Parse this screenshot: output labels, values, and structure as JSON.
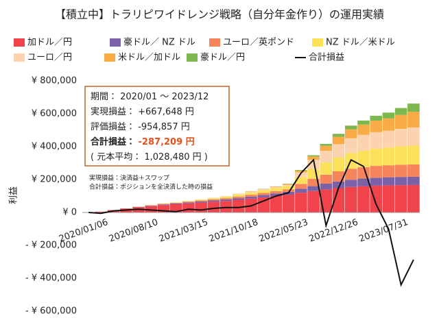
{
  "chart_data": {
    "type": "stacked-bar-line",
    "title": "【積立中】トラリピワイドレンジ戦略（自分年金作り）の運用実績",
    "y_label": "利益",
    "categories": [
      "2020/01/06",
      null,
      null,
      null,
      "2020/08/10",
      null,
      null,
      null,
      "2021/03/15",
      null,
      null,
      null,
      "2021/10/18",
      null,
      null,
      null,
      "2022/05/23",
      null,
      null,
      null,
      "2022/12/26",
      null,
      null,
      null,
      "2023/07/31",
      null,
      null
    ],
    "series": [
      {
        "name": "加ドル／円",
        "color": "#f0434b",
        "values": [
          0,
          5000,
          14000,
          23000,
          31000,
          38000,
          45000,
          50000,
          55000,
          60000,
          65000,
          70000,
          77000,
          84000,
          92000,
          100000,
          108000,
          120000,
          130000,
          140000,
          148000,
          155000,
          160000,
          163000,
          165000,
          166000,
          167000
        ]
      },
      {
        "name": "豪ドル／ NZ ドル",
        "color": "#7b62a8",
        "values": [
          0,
          0,
          0,
          1000,
          2000,
          3000,
          4000,
          5000,
          6000,
          7000,
          8000,
          9000,
          10000,
          12000,
          14000,
          16000,
          18000,
          24000,
          30000,
          35000,
          40000,
          44000,
          46000,
          48000,
          49000,
          50000,
          50000
        ]
      },
      {
        "name": "ユーロ／英ポンド",
        "color": "#f7845a",
        "values": [
          0,
          0,
          1000,
          1000,
          2000,
          3000,
          4000,
          4000,
          5000,
          6000,
          7000,
          8000,
          10000,
          12000,
          13000,
          14000,
          15000,
          30000,
          45000,
          55000,
          62000,
          67000,
          70000,
          72000,
          73000,
          74000,
          75000
        ]
      },
      {
        "name": "NZ ドル／米ドル",
        "color": "#fbe15a",
        "values": [
          0,
          0,
          0,
          0,
          0,
          1000,
          2000,
          3000,
          4000,
          5000,
          7000,
          9000,
          12000,
          14000,
          16000,
          18000,
          20000,
          40000,
          60000,
          75000,
          85000,
          95000,
          100000,
          105000,
          108000,
          112000,
          115000
        ]
      },
      {
        "name": "ユーロ／円",
        "color": "#fbd3b0",
        "values": [
          0,
          0,
          0,
          0,
          0,
          0,
          0,
          0,
          0,
          1000,
          2000,
          3000,
          4000,
          5000,
          6000,
          7000,
          8000,
          30000,
          55000,
          70000,
          80000,
          90000,
          96000,
          100000,
          102000,
          106000,
          110000
        ]
      },
      {
        "name": "米ドル／加ドル",
        "color": "#f9ac45",
        "values": [
          0,
          0,
          0,
          0,
          0,
          0,
          0,
          0,
          0,
          0,
          0,
          0,
          1000,
          2000,
          2000,
          3000,
          4000,
          10000,
          20000,
          30000,
          45000,
          55000,
          62000,
          70000,
          75000,
          85000,
          95000
        ]
      },
      {
        "name": "豪ドル／円",
        "color": "#7db84e",
        "values": [
          0,
          0,
          0,
          0,
          0,
          0,
          0,
          0,
          0,
          0,
          0,
          0,
          0,
          0,
          1000,
          1000,
          2000,
          4000,
          8000,
          12000,
          18000,
          22000,
          25000,
          30000,
          35000,
          42000,
          50000
        ]
      },
      {
        "name": "合計損益",
        "type": "line",
        "color": "#111111",
        "values": [
          0,
          -5000,
          10000,
          15000,
          20000,
          15000,
          10000,
          5000,
          20000,
          15000,
          25000,
          30000,
          30000,
          40000,
          70000,
          100000,
          120000,
          240000,
          320000,
          -80000,
          150000,
          320000,
          280000,
          50000,
          -100000,
          -440000,
          -287209
        ]
      }
    ],
    "ylim": [
      -600000,
      800000
    ],
    "yticks": [
      {
        "value": 800000,
        "label": "¥ 800,000"
      },
      {
        "value": 600000,
        "label": "¥ 600,000"
      },
      {
        "value": 400000,
        "label": "¥ 400,000"
      },
      {
        "value": 200000,
        "label": "¥ 200,000"
      },
      {
        "value": 0,
        "label": "¥ 0"
      },
      {
        "value": -200000,
        "label": "- ¥ 200,000"
      },
      {
        "value": -400000,
        "label": "- ¥ 400,000"
      },
      {
        "value": -600000,
        "label": "- ¥ 600,000"
      }
    ],
    "negative_tick_color": "#c00000",
    "grid": false,
    "legend": "top",
    "info_box": {
      "period": "期間： 2020/01 ～ 2023/12",
      "realized_label": "実現損益： ",
      "realized": "+667,648 円",
      "unrealized_label": "評価損益： ",
      "unrealized": "-954,857 円",
      "total_label": "合計損益： ",
      "total": "-287,209 円",
      "principal": "( 元本平均： 1,028,480 円 )"
    },
    "notes": [
      "実現損益：決済益＋スワップ",
      "合計損益：ポジションを全決済した時の損益"
    ]
  }
}
